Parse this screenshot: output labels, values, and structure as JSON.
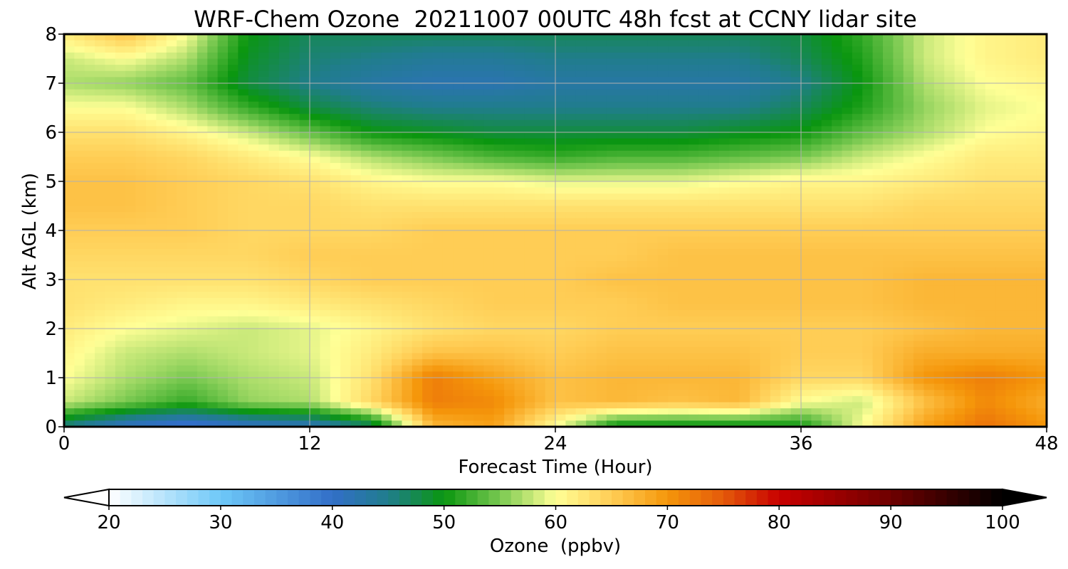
{
  "chart_data": {
    "type": "heatmap",
    "title": "WRF-Chem Ozone  20211007 00UTC 48h fcst at CCNY lidar site",
    "xlabel": "Forecast Time (Hour)",
    "ylabel": "Alt AGL (km)",
    "xlim": [
      0,
      48
    ],
    "ylim": [
      0,
      8
    ],
    "x_ticks": [
      "0",
      "12",
      "24",
      "36",
      "48"
    ],
    "y_ticks": [
      "0",
      "1",
      "2",
      "3",
      "4",
      "5",
      "6",
      "7",
      "8"
    ],
    "grid": true,
    "colorbar": {
      "label": "Ozone  (ppbv)",
      "range": [
        20,
        100
      ],
      "extend": "both",
      "ticks": [
        "20",
        "30",
        "40",
        "50",
        "60",
        "70",
        "80",
        "90",
        "100"
      ],
      "levels": 80
    },
    "x": [
      0,
      3,
      6,
      9,
      12,
      15,
      18,
      21,
      24,
      27,
      30,
      33,
      36,
      39,
      42,
      45,
      48
    ],
    "y": [
      0,
      0.5,
      1,
      1.5,
      2,
      2.5,
      3,
      3.5,
      4,
      4.5,
      5,
      5.5,
      6,
      6.5,
      7,
      7.5,
      8
    ],
    "values": [
      [
        45,
        40,
        38,
        40,
        41,
        46,
        67,
        69,
        60,
        49,
        49,
        49,
        50,
        60,
        69,
        73,
        70
      ],
      [
        58,
        55,
        52,
        56,
        57,
        64,
        72,
        71,
        66,
        67,
        66,
        67,
        60,
        58,
        66,
        71,
        68
      ],
      [
        60,
        57,
        55,
        57,
        58,
        63,
        72,
        69,
        66,
        67,
        67,
        67,
        64,
        64,
        70,
        72,
        70
      ],
      [
        61,
        58,
        57,
        58,
        59,
        62,
        66,
        66,
        65,
        66,
        66,
        66,
        65,
        65,
        68,
        68,
        68
      ],
      [
        62,
        60,
        59,
        58,
        59,
        61,
        63,
        64,
        64,
        65,
        65,
        65,
        65,
        65,
        66,
        67,
        67
      ],
      [
        63,
        62,
        61,
        61,
        62,
        63,
        64,
        65,
        65,
        65,
        66,
        66,
        66,
        66,
        67,
        67,
        67
      ],
      [
        63,
        63,
        63,
        63,
        64,
        65,
        65,
        65,
        65,
        66,
        66,
        66,
        66,
        66,
        67,
        67,
        67
      ],
      [
        64,
        64,
        64,
        64,
        65,
        65,
        65,
        65,
        65,
        65,
        66,
        66,
        66,
        66,
        66,
        66,
        66
      ],
      [
        65,
        65,
        65,
        64,
        64,
        64,
        65,
        65,
        65,
        65,
        65,
        65,
        65,
        65,
        65,
        65,
        65
      ],
      [
        66,
        66,
        65,
        64,
        64,
        63,
        63,
        63,
        63,
        63,
        63,
        63,
        63,
        63,
        64,
        64,
        64
      ],
      [
        66,
        66,
        65,
        64,
        63,
        61,
        60,
        60,
        59,
        59,
        59,
        60,
        61,
        61,
        62,
        63,
        63
      ],
      [
        65,
        65,
        64,
        62,
        60,
        57,
        55,
        53,
        52,
        53,
        53,
        54,
        55,
        58,
        60,
        62,
        62
      ],
      [
        63,
        63,
        61,
        58,
        54,
        50,
        49,
        48,
        48,
        48,
        48,
        49,
        50,
        54,
        57,
        60,
        61
      ],
      [
        60,
        60,
        57,
        52,
        48,
        46,
        45,
        45,
        45,
        45,
        45,
        45,
        47,
        51,
        56,
        59,
        60
      ],
      [
        57,
        56,
        54,
        48,
        45,
        43,
        42,
        42,
        43,
        43,
        43,
        43,
        45,
        50,
        57,
        60,
        61
      ],
      [
        58,
        60,
        57,
        49,
        46,
        45,
        44,
        44,
        45,
        45,
        45,
        45,
        47,
        51,
        58,
        61,
        62
      ],
      [
        62,
        66,
        60,
        50,
        47,
        47,
        47,
        47,
        47,
        47,
        47,
        47,
        48,
        52,
        58,
        61,
        62
      ]
    ]
  }
}
